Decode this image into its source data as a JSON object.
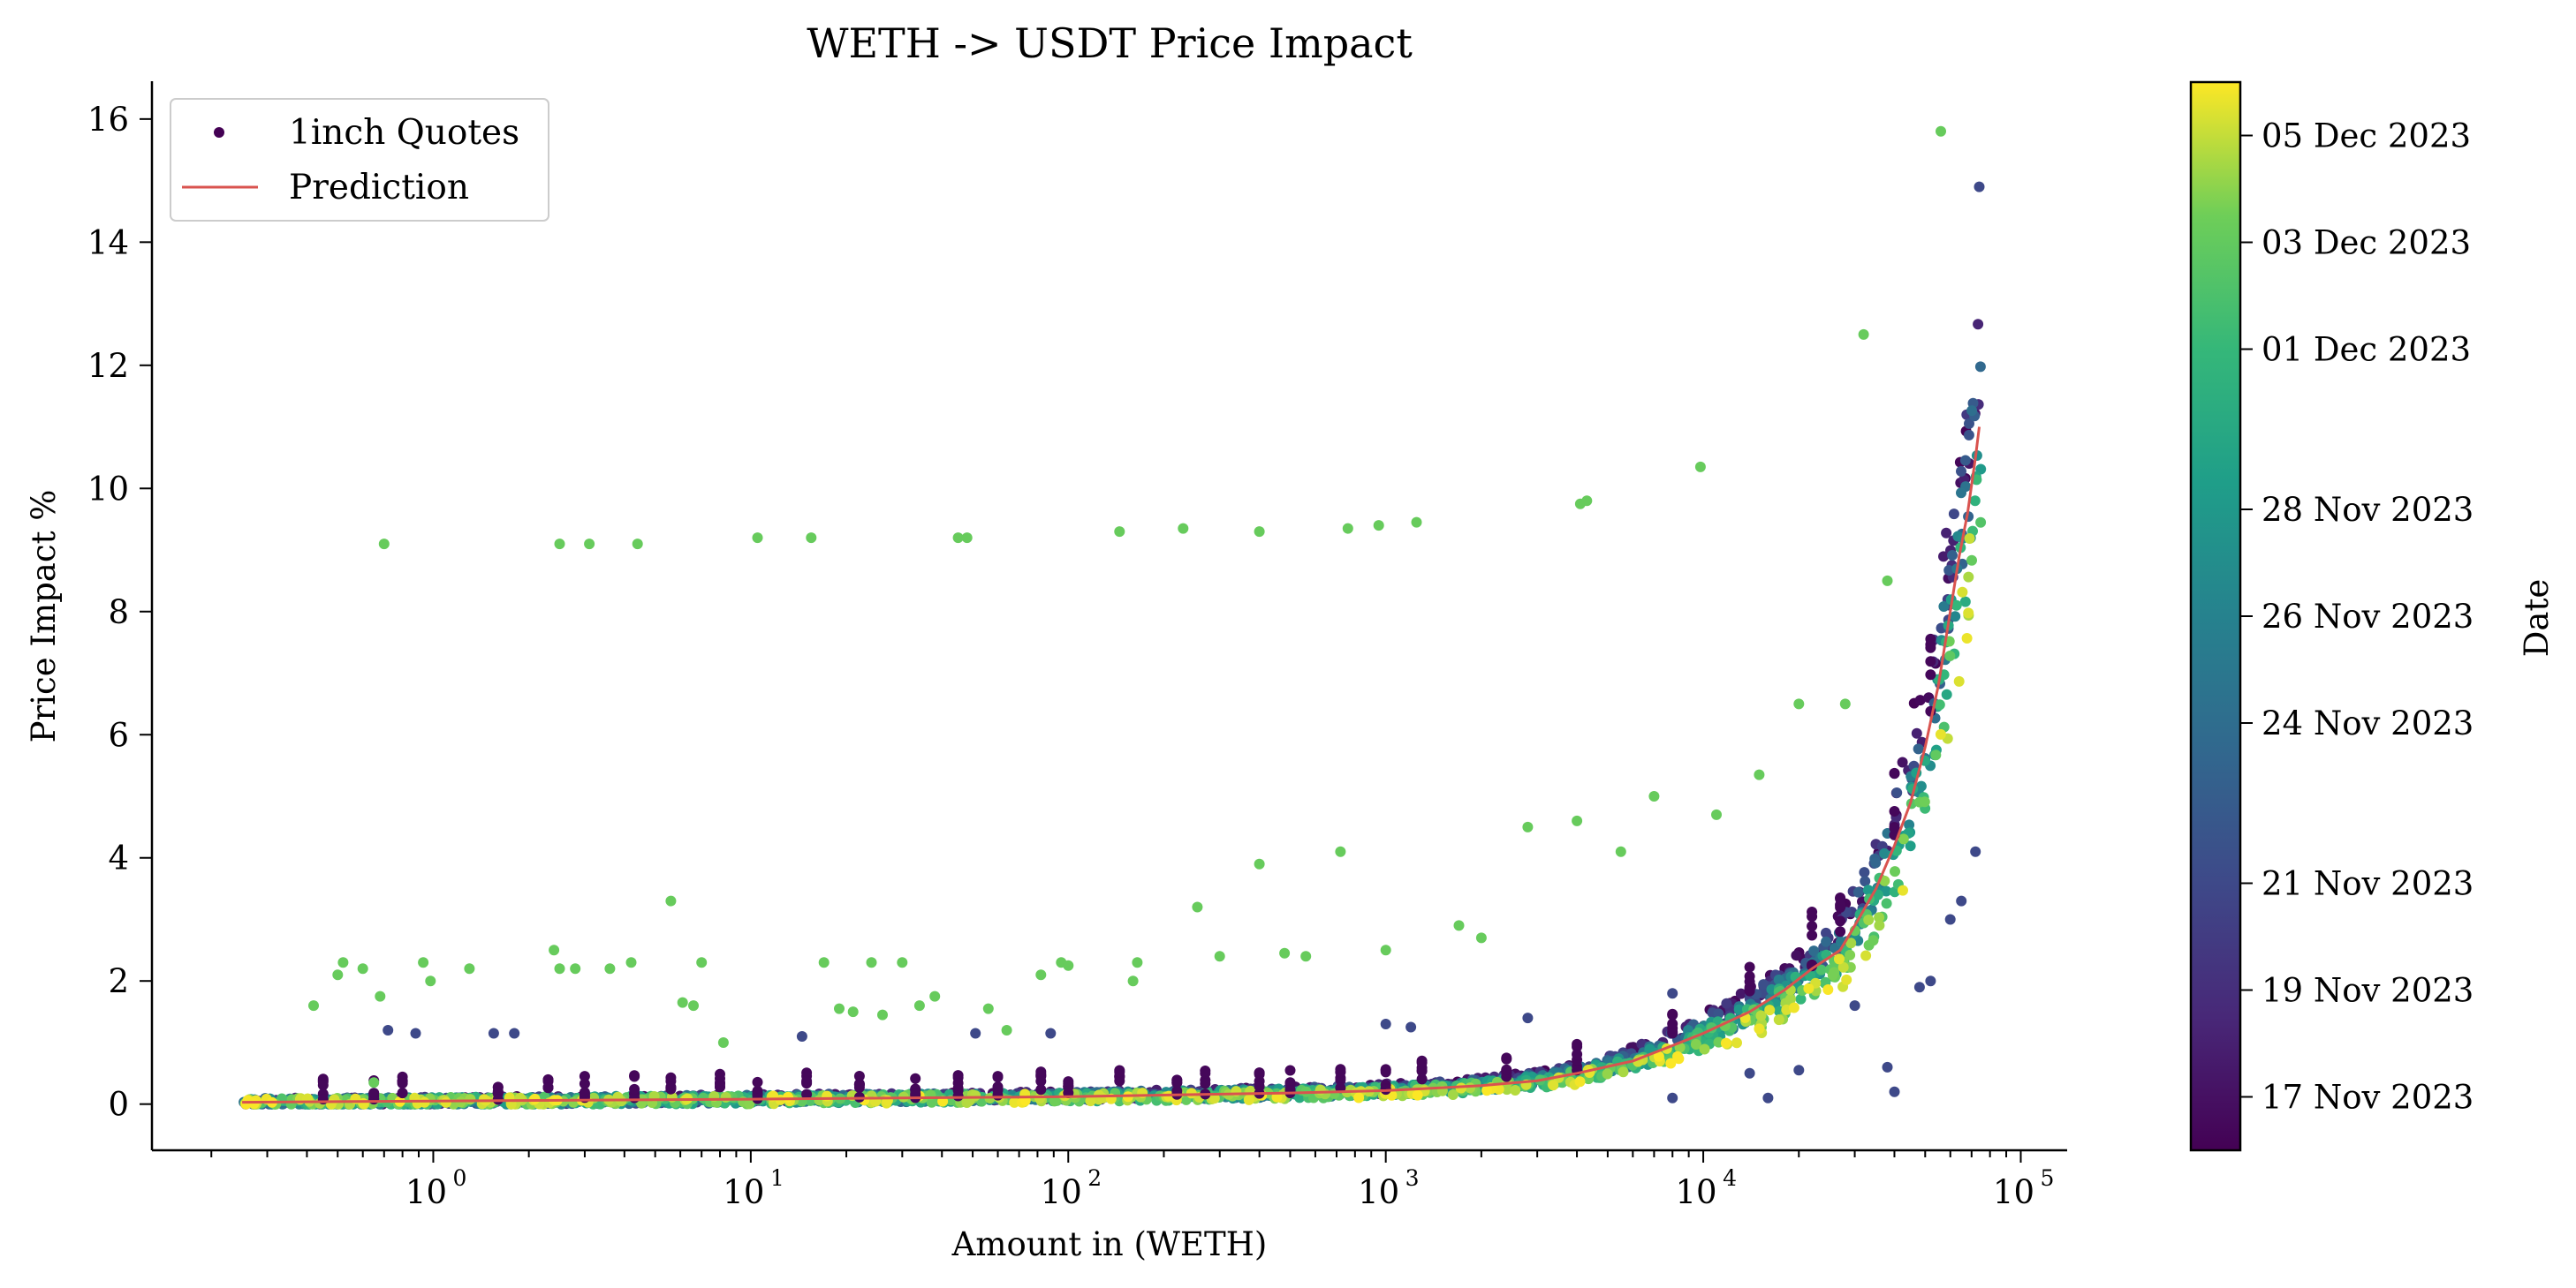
{
  "chart_data": {
    "type": "scatter",
    "title": "WETH -> USDT Price Impact",
    "xlabel": "Amount in (WETH)",
    "ylabel": "Price Impact %",
    "x_scale": "log",
    "xlim": [
      0.13,
      140000
    ],
    "ylim": [
      -0.75,
      16.6
    ],
    "x_ticks": [
      1,
      10,
      100,
      1000,
      10000,
      100000
    ],
    "x_tick_base": "10",
    "x_tick_exponents": [
      "0",
      "1",
      "2",
      "3",
      "4",
      "5"
    ],
    "y_ticks": [
      "0",
      "2",
      "4",
      "6",
      "8",
      "10",
      "12",
      "14",
      "16"
    ],
    "grid": false,
    "legend": {
      "placement": "top-left",
      "entries": [
        {
          "label": "1inch Quotes",
          "marker": "point",
          "color": "#440154"
        },
        {
          "label": "Prediction",
          "marker": "line",
          "color": "#d9534f"
        }
      ]
    },
    "colorbar": {
      "label": "Date",
      "colormap": "viridis",
      "range": [
        "2023-11-16",
        "2023-12-05"
      ],
      "tick_labels": [
        "17 Nov 2023",
        "19 Nov 2023",
        "21 Nov 2023",
        "24 Nov 2023",
        "26 Nov 2023",
        "28 Nov 2023",
        "01 Dec 2023",
        "03 Dec 2023",
        "05 Dec 2023"
      ],
      "tick_values": [
        0.05,
        0.15,
        0.25,
        0.4,
        0.5,
        0.6,
        0.75,
        0.85,
        0.95
      ]
    },
    "series": [
      {
        "name": "1inch Quotes",
        "kind": "scatter",
        "points": [
          [
            0.42,
            1.6,
            0.86
          ],
          [
            0.5,
            2.1,
            0.86
          ],
          [
            0.52,
            2.3,
            0.86
          ],
          [
            0.6,
            2.2,
            0.86
          ],
          [
            0.65,
            0.35,
            0.86
          ],
          [
            0.68,
            1.75,
            0.86
          ],
          [
            0.7,
            9.1,
            0.86
          ],
          [
            0.72,
            1.2,
            0.25
          ],
          [
            0.88,
            1.15,
            0.25
          ],
          [
            0.93,
            2.3,
            0.86
          ],
          [
            0.98,
            2.0,
            0.86
          ],
          [
            1.3,
            2.2,
            0.86
          ],
          [
            1.55,
            1.15,
            0.25
          ],
          [
            1.8,
            1.15,
            0.25
          ],
          [
            2.4,
            2.5,
            0.86
          ],
          [
            2.5,
            9.1,
            0.86
          ],
          [
            2.5,
            2.2,
            0.86
          ],
          [
            2.8,
            2.2,
            0.86
          ],
          [
            3.1,
            9.1,
            0.86
          ],
          [
            3.6,
            2.2,
            0.86
          ],
          [
            4.2,
            2.3,
            0.86
          ],
          [
            4.4,
            9.1,
            0.86
          ],
          [
            5.6,
            3.3,
            0.86
          ],
          [
            6.1,
            1.65,
            0.86
          ],
          [
            6.6,
            1.6,
            0.86
          ],
          [
            7.0,
            2.3,
            0.86
          ],
          [
            8.2,
            1.0,
            0.86
          ],
          [
            10.5,
            9.2,
            0.86
          ],
          [
            14.5,
            1.1,
            0.25
          ],
          [
            15.5,
            9.2,
            0.86
          ],
          [
            17.0,
            2.3,
            0.86
          ],
          [
            19.0,
            1.55,
            0.86
          ],
          [
            21.0,
            1.5,
            0.86
          ],
          [
            24.0,
            2.3,
            0.86
          ],
          [
            26.0,
            1.45,
            0.86
          ],
          [
            30.0,
            2.3,
            0.86
          ],
          [
            34.0,
            1.6,
            0.86
          ],
          [
            38.0,
            1.75,
            0.86
          ],
          [
            45.0,
            9.2,
            0.86
          ],
          [
            48.0,
            9.2,
            0.86
          ],
          [
            51.0,
            1.15,
            0.25
          ],
          [
            56.0,
            1.55,
            0.86
          ],
          [
            64.0,
            1.2,
            0.86
          ],
          [
            82.0,
            2.1,
            0.86
          ],
          [
            88.0,
            1.15,
            0.25
          ],
          [
            95.0,
            2.3,
            0.86
          ],
          [
            100.0,
            2.25,
            0.86
          ],
          [
            145.0,
            9.3,
            0.86
          ],
          [
            160.0,
            2.0,
            0.86
          ],
          [
            165.0,
            2.3,
            0.86
          ],
          [
            230.0,
            9.35,
            0.86
          ],
          [
            255.0,
            3.2,
            0.86
          ],
          [
            300.0,
            2.4,
            0.86
          ],
          [
            400.0,
            9.3,
            0.86
          ],
          [
            400.0,
            3.9,
            0.86
          ],
          [
            480.0,
            2.45,
            0.86
          ],
          [
            560.0,
            2.4,
            0.86
          ],
          [
            720.0,
            4.1,
            0.86
          ],
          [
            760.0,
            9.35,
            0.86
          ],
          [
            950.0,
            9.4,
            0.86
          ],
          [
            1000.0,
            2.5,
            0.86
          ],
          [
            1250.0,
            9.45,
            0.86
          ],
          [
            1700.0,
            2.9,
            0.86
          ],
          [
            2000.0,
            2.7,
            0.86
          ],
          [
            2800.0,
            4.5,
            0.86
          ],
          [
            4000.0,
            4.6,
            0.86
          ],
          [
            4100.0,
            9.75,
            0.86
          ],
          [
            4300.0,
            9.8,
            0.86
          ],
          [
            5500.0,
            4.1,
            0.86
          ],
          [
            7000.0,
            5.0,
            0.86
          ],
          [
            9800.0,
            10.35,
            0.86
          ],
          [
            11000.0,
            4.7,
            0.86
          ],
          [
            15000.0,
            5.35,
            0.86
          ],
          [
            20000.0,
            6.5,
            0.86
          ],
          [
            28000.0,
            6.5,
            0.86
          ],
          [
            32000.0,
            12.5,
            0.86
          ],
          [
            38000.0,
            8.5,
            0.86
          ],
          [
            56000.0,
            15.8,
            0.86
          ],
          [
            48000.0,
            1.9,
            0.25
          ],
          [
            52000.0,
            2.0,
            0.25
          ],
          [
            60000.0,
            3.0,
            0.25
          ],
          [
            65000.0,
            3.3,
            0.25
          ],
          [
            72000.0,
            4.1,
            0.25
          ],
          [
            74000.0,
            14.9,
            0.25
          ],
          [
            38000.0,
            0.6,
            0.25
          ],
          [
            40000.0,
            0.2,
            0.25
          ],
          [
            30000.0,
            1.6,
            0.25
          ],
          [
            20000.0,
            0.55,
            0.25
          ],
          [
            16000.0,
            0.1,
            0.25
          ],
          [
            8000.0,
            0.1,
            0.25
          ],
          [
            1000.0,
            1.3,
            0.25
          ],
          [
            2800.0,
            1.4,
            0.25
          ],
          [
            1200.0,
            1.25,
            0.25
          ],
          [
            8000.0,
            1.8,
            0.25
          ],
          [
            14000.0,
            0.5,
            0.25
          ]
        ]
      },
      {
        "name": "Prediction",
        "kind": "line",
        "points": [
          [
            0.25,
            0.03
          ],
          [
            1,
            0.05
          ],
          [
            10,
            0.08
          ],
          [
            100,
            0.12
          ],
          [
            500,
            0.18
          ],
          [
            1000,
            0.22
          ],
          [
            2000,
            0.3
          ],
          [
            3000,
            0.38
          ],
          [
            4000,
            0.5
          ],
          [
            6000,
            0.7
          ],
          [
            8000,
            0.95
          ],
          [
            10000,
            1.15
          ],
          [
            14000,
            1.5
          ],
          [
            18000,
            1.85
          ],
          [
            22000,
            2.2
          ],
          [
            27000,
            2.5
          ],
          [
            30000,
            2.9
          ],
          [
            35000,
            3.5
          ],
          [
            40000,
            4.2
          ],
          [
            45000,
            4.9
          ],
          [
            50000,
            5.8
          ],
          [
            55000,
            6.8
          ],
          [
            60000,
            8.0
          ],
          [
            64000,
            8.9
          ],
          [
            68000,
            9.6
          ],
          [
            72000,
            10.5
          ],
          [
            74000,
            11.0
          ]
        ]
      }
    ]
  }
}
